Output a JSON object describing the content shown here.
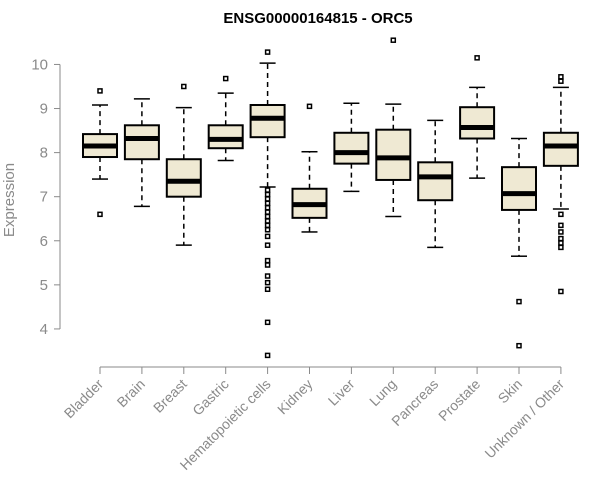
{
  "chart_data": {
    "type": "box",
    "title": "ENSG00000164815 - ORC5",
    "ylabel": "Expression",
    "ylim": [
      3.25,
      10.6
    ],
    "yticks": [
      4,
      5,
      6,
      7,
      8,
      9,
      10
    ],
    "categories": [
      "Bladder",
      "Brain",
      "Breast",
      "Gastric",
      "Hematopoietic cells",
      "Kidney",
      "Liver",
      "Lung",
      "Pancreas",
      "Prostate",
      "Skin",
      "Unknown / Other"
    ],
    "boxes": [
      {
        "name": "Bladder",
        "min": 7.4,
        "q1": 7.9,
        "median": 8.15,
        "q3": 8.42,
        "max": 9.08,
        "outliers": [
          9.4,
          6.6
        ]
      },
      {
        "name": "Brain",
        "min": 6.78,
        "q1": 7.85,
        "median": 8.32,
        "q3": 8.62,
        "max": 9.22,
        "outliers": []
      },
      {
        "name": "Breast",
        "min": 5.9,
        "q1": 7.0,
        "median": 7.35,
        "q3": 7.85,
        "max": 9.02,
        "outliers": [
          9.5
        ]
      },
      {
        "name": "Gastric",
        "min": 7.82,
        "q1": 8.1,
        "median": 8.3,
        "q3": 8.62,
        "max": 9.35,
        "outliers": [
          9.68
        ]
      },
      {
        "name": "Hematopoietic cells",
        "min": 7.22,
        "q1": 8.35,
        "median": 8.78,
        "q3": 9.08,
        "max": 10.03,
        "outliers": [
          10.28,
          7.15,
          7.05,
          6.95,
          6.85,
          6.75,
          6.65,
          6.55,
          6.45,
          6.35,
          6.25,
          6.1,
          5.9,
          5.55,
          5.45,
          5.2,
          5.05,
          4.9,
          4.15,
          3.4
        ]
      },
      {
        "name": "Kidney",
        "min": 6.2,
        "q1": 6.52,
        "median": 6.82,
        "q3": 7.18,
        "max": 8.02,
        "outliers": [
          9.05
        ]
      },
      {
        "name": "Liver",
        "min": 7.12,
        "q1": 7.75,
        "median": 8.0,
        "q3": 8.45,
        "max": 9.12,
        "outliers": []
      },
      {
        "name": "Lung",
        "min": 6.55,
        "q1": 7.38,
        "median": 7.88,
        "q3": 8.52,
        "max": 9.1,
        "outliers": [
          10.55
        ]
      },
      {
        "name": "Pancreas",
        "min": 5.85,
        "q1": 6.92,
        "median": 7.45,
        "q3": 7.78,
        "max": 8.73,
        "outliers": []
      },
      {
        "name": "Prostate",
        "min": 7.42,
        "q1": 8.32,
        "median": 8.57,
        "q3": 9.03,
        "max": 9.48,
        "outliers": [
          10.15
        ]
      },
      {
        "name": "Skin",
        "min": 5.65,
        "q1": 6.7,
        "median": 7.07,
        "q3": 7.67,
        "max": 8.32,
        "outliers": [
          4.62,
          3.62
        ]
      },
      {
        "name": "Unknown / Other",
        "min": 6.72,
        "q1": 7.7,
        "median": 8.15,
        "q3": 8.45,
        "max": 9.48,
        "outliers": [
          9.72,
          9.62,
          6.6,
          6.35,
          6.2,
          6.05,
          5.95,
          5.85,
          4.85
        ]
      }
    ],
    "colors": {
      "box_fill": "#efe9d3",
      "axis": "#8a8a8a"
    }
  }
}
